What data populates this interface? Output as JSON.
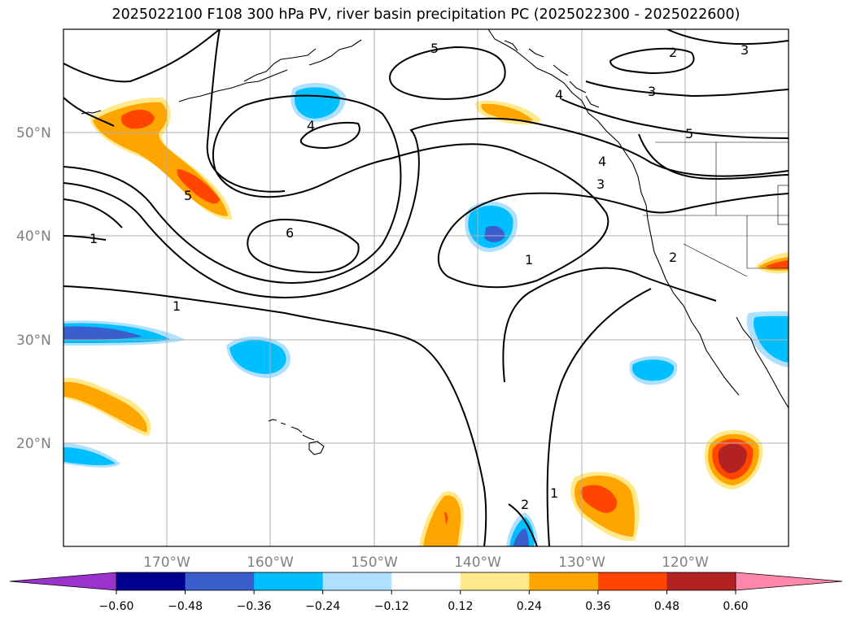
{
  "title": "2025022100 F108 300 hPa PV, river basin precipitation PC (2025022300 - 2025022600)",
  "axes": {
    "lat_ticks": [
      "50°N",
      "40°N",
      "30°N",
      "20°N"
    ],
    "lon_ticks": [
      "170°W",
      "160°W",
      "150°W",
      "140°W",
      "130°W",
      "120°W"
    ]
  },
  "colorbar": {
    "ticks": [
      "−0.60",
      "−0.48",
      "−0.36",
      "−0.24",
      "−0.12",
      "0.12",
      "0.24",
      "0.36",
      "0.48",
      "0.60"
    ],
    "colors": {
      "under": "#9933cc",
      "bins": [
        "#000090",
        "#3a5fcd",
        "#00bfff",
        "#b0e0ff",
        "#ffffff",
        "#ffe98a",
        "#ffa500",
        "#ff4500",
        "#b22222"
      ],
      "over": "#ff88aa"
    }
  },
  "pv_contour_labels": [
    "5",
    "2",
    "3",
    "3",
    "4",
    "5",
    "4",
    "3",
    "5",
    "4",
    "6",
    "1",
    "1",
    "1",
    "2",
    "2",
    "1"
  ],
  "chart_data": {
    "type": "contour_map",
    "title": "2025022100 F108 300 hPa PV, river basin precipitation PC (2025022300 - 2025022600)",
    "lon_range": [
      -180,
      -110
    ],
    "lat_range": [
      10,
      60
    ],
    "lat_ticks": [
      50,
      40,
      30,
      20
    ],
    "lon_ticks": [
      -170,
      -160,
      -150,
      -140,
      -130,
      -120
    ],
    "colorbar_levels": [
      -0.6,
      -0.48,
      -0.36,
      -0.24,
      -0.12,
      0.12,
      0.24,
      0.36,
      0.48,
      0.6
    ],
    "contour_levels": [
      1,
      2,
      3,
      4,
      5,
      6
    ]
  }
}
